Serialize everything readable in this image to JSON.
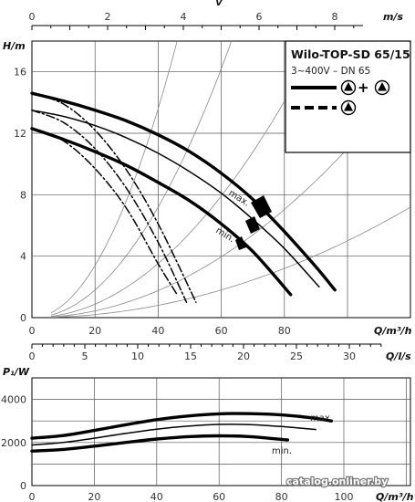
{
  "chart_data": [
    {
      "type": "line",
      "title": "",
      "xlabel": "Q/m³/h",
      "ylabel": "H/m",
      "xlim": [
        0,
        100
      ],
      "ylim": [
        0,
        18
      ],
      "x_ticks": [
        0,
        20,
        40,
        60,
        80
      ],
      "y_ticks": [
        0,
        4,
        8,
        12,
        16
      ],
      "secondary_x_top": {
        "label": "v",
        "unit_label": "m/s",
        "ticks": [
          0,
          2,
          4,
          6,
          8
        ],
        "max": 10
      },
      "secondary_x_bottom": {
        "label": "Q/l/s",
        "ticks": [
          0,
          5,
          10,
          15,
          20,
          25,
          30
        ],
        "max": 30
      },
      "legend": {
        "title": "Wilo-TOP-SD 65/15",
        "subtitle": "3~400V – DN 65",
        "plus_symbol": "+",
        "placement": "top-right"
      },
      "series": [
        {
          "name": "max.",
          "style": "solid-thick",
          "x": [
            0,
            10,
            20,
            30,
            40,
            50,
            60,
            70,
            80,
            90,
            96
          ],
          "y": [
            14.6,
            14.1,
            13.5,
            12.8,
            11.9,
            10.8,
            9.4,
            7.7,
            5.6,
            3.3,
            1.8
          ]
        },
        {
          "name": "",
          "style": "solid-thin",
          "x": [
            0,
            10,
            20,
            30,
            40,
            50,
            60,
            70,
            80,
            91
          ],
          "y": [
            13.5,
            13.1,
            12.5,
            11.7,
            10.7,
            9.5,
            8.1,
            6.4,
            4.5,
            2.0
          ]
        },
        {
          "name": "min.",
          "style": "solid-thick",
          "x": [
            0,
            10,
            20,
            30,
            40,
            50,
            60,
            70,
            82
          ],
          "y": [
            12.3,
            11.6,
            10.8,
            9.9,
            8.8,
            7.6,
            6.1,
            4.3,
            1.5
          ]
        },
        {
          "name": "",
          "style": "dash-dot",
          "x": [
            0,
            10,
            20,
            30,
            40,
            52
          ],
          "y": [
            14.6,
            13.9,
            12.2,
            9.6,
            6.1,
            1.0
          ]
        },
        {
          "name": "",
          "style": "dash-dot",
          "x": [
            0,
            10,
            20,
            30,
            40,
            49
          ],
          "y": [
            13.5,
            12.7,
            11.0,
            8.4,
            4.9,
            1.0
          ]
        },
        {
          "name": "",
          "style": "dash-dot",
          "x": [
            0,
            10,
            20,
            30,
            40,
            46
          ],
          "y": [
            12.3,
            11.5,
            9.7,
            7.1,
            3.5,
            1.5
          ]
        }
      ],
      "series_labels": [
        "max.",
        "min."
      ]
    },
    {
      "type": "line",
      "title": "",
      "xlabel": "Q/m³/h",
      "ylabel": "P₁/W",
      "xlim": [
        0,
        100
      ],
      "ylim": [
        0,
        5000
      ],
      "x_ticks": [
        0,
        20,
        40,
        60,
        80,
        100
      ],
      "y_ticks": [
        0,
        2000,
        4000
      ],
      "series": [
        {
          "name": "max.",
          "style": "solid-thick",
          "x": [
            0,
            10,
            20,
            30,
            40,
            50,
            60,
            70,
            80,
            90,
            96
          ],
          "y": [
            2200,
            2320,
            2560,
            2820,
            3060,
            3230,
            3330,
            3340,
            3280,
            3140,
            3000
          ]
        },
        {
          "name": "",
          "style": "solid-thin",
          "x": [
            0,
            10,
            20,
            30,
            40,
            50,
            60,
            70,
            80,
            91
          ],
          "y": [
            1880,
            2000,
            2200,
            2420,
            2620,
            2760,
            2840,
            2830,
            2740,
            2600
          ]
        },
        {
          "name": "min.",
          "style": "solid-thick",
          "x": [
            0,
            10,
            20,
            30,
            40,
            50,
            60,
            70,
            82
          ],
          "y": [
            1600,
            1680,
            1830,
            2000,
            2160,
            2270,
            2310,
            2270,
            2120
          ]
        }
      ],
      "series_labels": [
        "max.",
        "min."
      ]
    }
  ],
  "watermark": "catalog.onliner.by"
}
